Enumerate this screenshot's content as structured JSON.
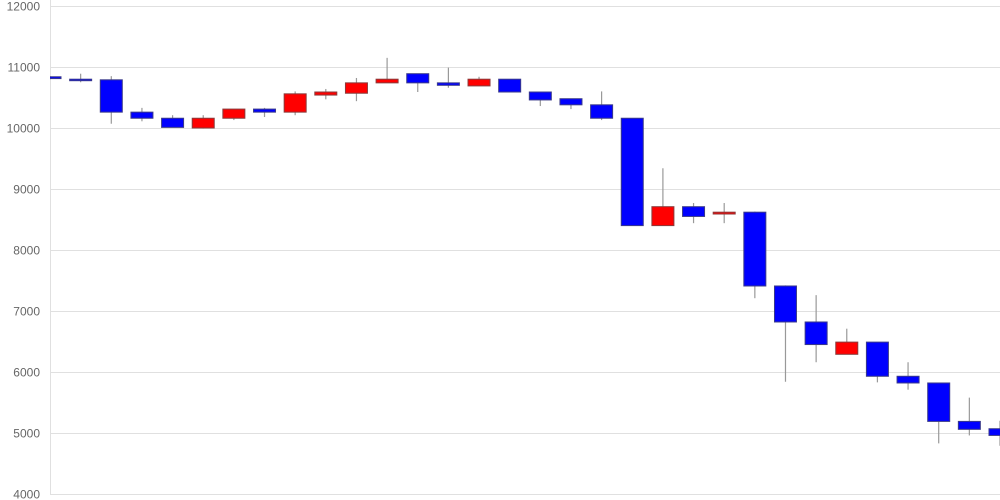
{
  "chart_data": {
    "type": "candlestick",
    "title": "",
    "xlabel": "",
    "ylabel": "",
    "ylim": [
      4000,
      12000
    ],
    "yticks": [
      "12000",
      "11000",
      "10000",
      "9000",
      "8000",
      "7000",
      "6000",
      "5000",
      "4000"
    ],
    "grid": true,
    "colors": {
      "up": "#ff0000",
      "down": "#0000ff",
      "wick": "#999999",
      "grid": "#e0e0e0"
    },
    "candles": [
      {
        "open": 10840,
        "high": 10850,
        "low": 10800,
        "close": 10810
      },
      {
        "open": 10800,
        "high": 10890,
        "low": 10750,
        "close": 10790
      },
      {
        "open": 10790,
        "high": 10850,
        "low": 10070,
        "close": 10260
      },
      {
        "open": 10260,
        "high": 10330,
        "low": 10110,
        "close": 10160
      },
      {
        "open": 10160,
        "high": 10210,
        "low": 10010,
        "close": 10010
      },
      {
        "open": 10000,
        "high": 10210,
        "low": 9990,
        "close": 10160
      },
      {
        "open": 10160,
        "high": 10310,
        "low": 10130,
        "close": 10310
      },
      {
        "open": 10310,
        "high": 10330,
        "low": 10180,
        "close": 10260
      },
      {
        "open": 10260,
        "high": 10600,
        "low": 10210,
        "close": 10560
      },
      {
        "open": 10540,
        "high": 10640,
        "low": 10470,
        "close": 10590
      },
      {
        "open": 10570,
        "high": 10820,
        "low": 10440,
        "close": 10740
      },
      {
        "open": 10740,
        "high": 11150,
        "low": 10740,
        "close": 10800
      },
      {
        "open": 10890,
        "high": 10890,
        "low": 10590,
        "close": 10740
      },
      {
        "open": 10740,
        "high": 10990,
        "low": 10660,
        "close": 10700
      },
      {
        "open": 10690,
        "high": 10840,
        "low": 10690,
        "close": 10800
      },
      {
        "open": 10800,
        "high": 10800,
        "low": 10590,
        "close": 10590
      },
      {
        "open": 10590,
        "high": 10590,
        "low": 10360,
        "close": 10460
      },
      {
        "open": 10480,
        "high": 10480,
        "low": 10310,
        "close": 10380
      },
      {
        "open": 10380,
        "high": 10600,
        "low": 10130,
        "close": 10160
      },
      {
        "open": 10160,
        "high": 10160,
        "low": 8400,
        "close": 8400
      },
      {
        "open": 8400,
        "high": 9340,
        "low": 8400,
        "close": 8710
      },
      {
        "open": 8710,
        "high": 8770,
        "low": 8440,
        "close": 8550
      },
      {
        "open": 8590,
        "high": 8770,
        "low": 8440,
        "close": 8620
      },
      {
        "open": 8620,
        "high": 8630,
        "low": 7210,
        "close": 7410
      },
      {
        "open": 7410,
        "high": 7420,
        "low": 5840,
        "close": 6820
      },
      {
        "open": 6820,
        "high": 7260,
        "low": 6160,
        "close": 6450
      },
      {
        "open": 6290,
        "high": 6710,
        "low": 6290,
        "close": 6490
      },
      {
        "open": 6490,
        "high": 6490,
        "low": 5830,
        "close": 5930
      },
      {
        "open": 5930,
        "high": 6160,
        "low": 5710,
        "close": 5820
      },
      {
        "open": 5820,
        "high": 5820,
        "low": 4830,
        "close": 5190
      },
      {
        "open": 5190,
        "high": 5580,
        "low": 4960,
        "close": 5060
      },
      {
        "open": 5070,
        "high": 5200,
        "low": 4790,
        "close": 4960
      }
    ]
  }
}
